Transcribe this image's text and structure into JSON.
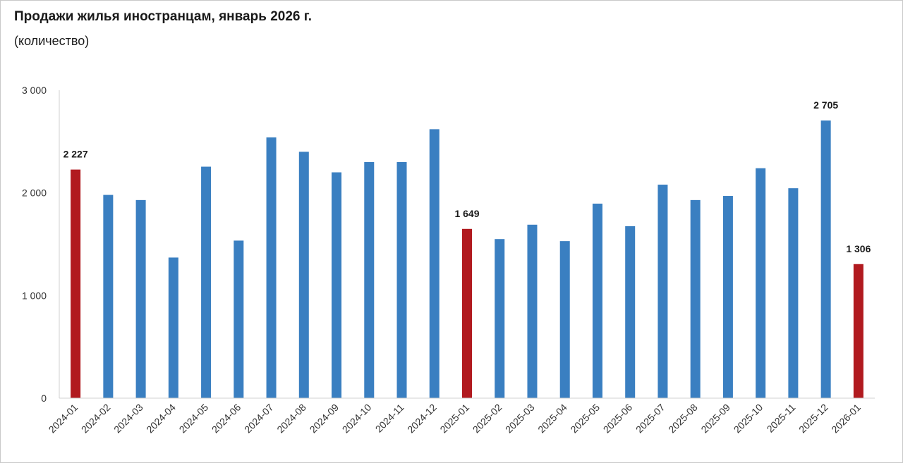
{
  "header": {
    "title": "Продажи жилья иностранцам, январь 2026 г.",
    "subtitle": "(количество)"
  },
  "chart_data": {
    "type": "bar",
    "title": "Продажи жилья иностранцам, январь 2026 г.",
    "subtitle": "(количество)",
    "categories": [
      "2024-01",
      "2024-02",
      "2024-03",
      "2024-04",
      "2024-05",
      "2024-06",
      "2024-07",
      "2024-08",
      "2024-09",
      "2024-10",
      "2024-11",
      "2024-12",
      "2025-01",
      "2025-02",
      "2025-03",
      "2025-04",
      "2025-05",
      "2025-06",
      "2025-07",
      "2025-08",
      "2025-09",
      "2025-10",
      "2025-11",
      "2025-12",
      "2026-01"
    ],
    "values": [
      2227,
      1980,
      1930,
      1370,
      2255,
      1535,
      2540,
      2400,
      2200,
      2300,
      2300,
      2620,
      1649,
      1550,
      1690,
      1530,
      1895,
      1675,
      2080,
      1930,
      1970,
      2240,
      2045,
      2705,
      1306
    ],
    "highlight": [
      0,
      12,
      24
    ],
    "data_labels": [
      {
        "index": 0,
        "text": "2 227"
      },
      {
        "index": 12,
        "text": "1 649"
      },
      {
        "index": 23,
        "text": "2 705"
      },
      {
        "index": 24,
        "text": "1 306"
      }
    ],
    "yticks": [
      {
        "value": 0,
        "label": "0"
      },
      {
        "value": 1000,
        "label": "1 000"
      },
      {
        "value": 2000,
        "label": "2 000"
      },
      {
        "value": 3000,
        "label": "3 000"
      }
    ],
    "ylim": [
      0,
      3000
    ],
    "xlabel": "",
    "ylabel": "",
    "grid": false,
    "legend": "none",
    "colors": {
      "bar": "#3a7fc1",
      "highlight": "#b11a1f",
      "axis": "#d0d0d0",
      "text": "#333333",
      "border": "#c9c9c9"
    }
  }
}
